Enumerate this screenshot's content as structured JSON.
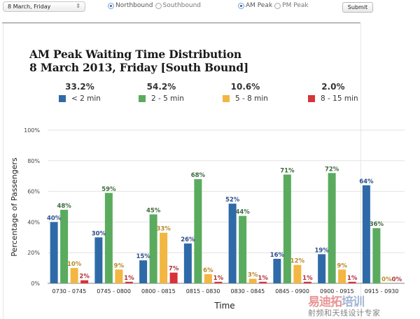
{
  "controls": {
    "date_select": {
      "value": "8 March, Friday"
    },
    "direction": {
      "options": [
        {
          "label": "Northbound",
          "selected": true
        },
        {
          "label": "Southbound",
          "selected": false
        }
      ]
    },
    "peak": {
      "options": [
        {
          "label": "AM Peak",
          "selected": true
        },
        {
          "label": "PM Peak",
          "selected": false
        }
      ]
    },
    "submit_label": "Submit"
  },
  "watermark": {
    "line1_red": "易迪拓",
    "line1_blue": "培训",
    "line2": "射频和天线设计专家"
  },
  "chart_data": {
    "type": "bar",
    "title": "AM Peak Waiting Time Distribution",
    "subtitle": "8 March 2013, Friday [South Bound]",
    "xlabel": "Time",
    "ylabel": "Percentage of Passengers",
    "ylim": [
      0,
      100
    ],
    "yticks": [
      "0%",
      "20%",
      "40%",
      "60%",
      "80%",
      "100%"
    ],
    "ytick_values": [
      0,
      20,
      40,
      60,
      80,
      100
    ],
    "grid": true,
    "legend_position": "top",
    "categories": [
      "0730 - 0745",
      "0745 - 0800",
      "0800 - 0815",
      "0815 - 0830",
      "0830 - 0845",
      "0845 - 0900",
      "0900 - 0915",
      "0915 - 0930"
    ],
    "series": [
      {
        "name": "< 2 min",
        "total": "33.2%",
        "color": "#2f6aa8",
        "label_color": "#2c4f8a",
        "values": [
          40,
          30,
          15,
          26,
          52,
          16,
          19,
          64
        ]
      },
      {
        "name": "2 - 5 min",
        "total": "54.2%",
        "color": "#5aab5e",
        "label_color": "#3d6b3f",
        "values": [
          48,
          59,
          45,
          68,
          44,
          71,
          72,
          36
        ]
      },
      {
        "name": "5 - 8 min",
        "total": "10.6%",
        "color": "#f2b642",
        "label_color": "#b8892c",
        "values": [
          10,
          9,
          33,
          6,
          3,
          12,
          9,
          0
        ]
      },
      {
        "name": "8 - 15 min",
        "total": "2.0%",
        "color": "#d8323a",
        "label_color": "#b0303a",
        "values": [
          2,
          1,
          7,
          1,
          1,
          1,
          1,
          0
        ]
      }
    ]
  }
}
